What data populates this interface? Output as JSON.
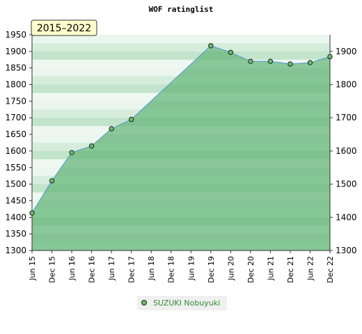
{
  "chart_data": {
    "type": "line",
    "title": "WOF ratinglist",
    "period_label": "2015–2022",
    "x": [
      "Jun 15",
      "Dec 15",
      "Jun 16",
      "Dec 16",
      "Jun 17",
      "Dec 17",
      "Jun 18",
      "Dec 18",
      "Jun 19",
      "Dec 19",
      "Jun 20",
      "Dec 20",
      "Jun 21",
      "Dec 21",
      "Jun 22",
      "Dec 22"
    ],
    "series": [
      {
        "name": "SUZUKI Nobuyuki",
        "values": [
          1413,
          1510,
          1595,
          1615,
          1667,
          1695,
          null,
          null,
          null,
          1917,
          1897,
          1870,
          1870,
          1862,
          1866,
          1884
        ],
        "color": "#5aa0d0",
        "fill": "#78c08a"
      }
    ],
    "ylim": [
      1300,
      1950
    ],
    "yticks_left": [
      1300,
      1350,
      1400,
      1450,
      1500,
      1550,
      1600,
      1650,
      1700,
      1750,
      1800,
      1850,
      1900,
      1950
    ],
    "yticks_right": [
      1300,
      1400,
      1500,
      1600,
      1700,
      1800,
      1900
    ],
    "grid": true,
    "legend_position": "bottom-center"
  }
}
